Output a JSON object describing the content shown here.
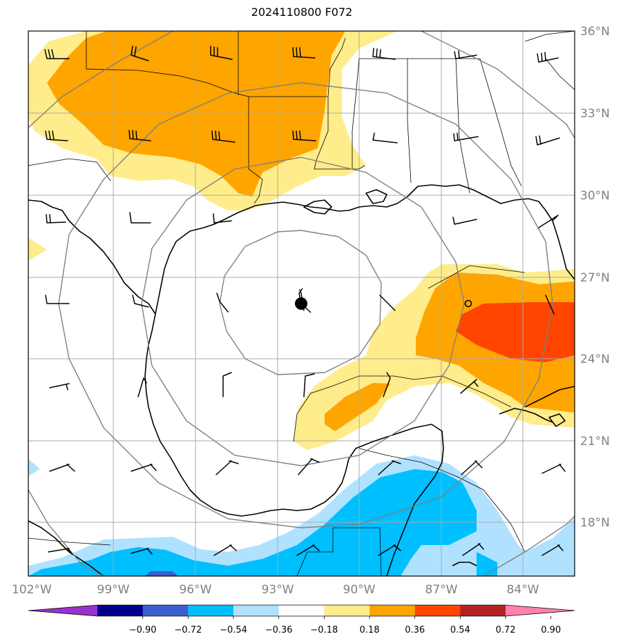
{
  "title": "2024110800 F072",
  "lat_labels": [
    "36°N",
    "33°N",
    "30°N",
    "27°N",
    "24°N",
    "21°N",
    "18°N"
  ],
  "lon_labels": [
    "102°W",
    "99°W",
    "96°W",
    "93°W",
    "90°W",
    "87°W",
    "84°W"
  ],
  "colorbar": {
    "labels": [
      "−0.90",
      "−0.72",
      "−0.54",
      "−0.36",
      "−0.18",
      "0.18",
      "0.36",
      "0.54",
      "0.72",
      "0.90"
    ],
    "colors": [
      "#9932cc",
      "#00008b",
      "#3a5fcd",
      "#00bfff",
      "#b0e2ff",
      "#ffffff",
      "#ffec8b",
      "#ffa500",
      "#ff4500",
      "#b22222",
      "#ff82ab"
    ]
  },
  "map_colors": {
    "light_yellow": "#ffec8b",
    "orange": "#ffa500",
    "red_orange": "#ff4500",
    "light_blue": "#b0e2ff",
    "deep_sky_blue": "#00bfff",
    "royal_blue": "#3a5fcd"
  },
  "storm_center": {
    "lon": -92.3,
    "lat": 26.0
  }
}
